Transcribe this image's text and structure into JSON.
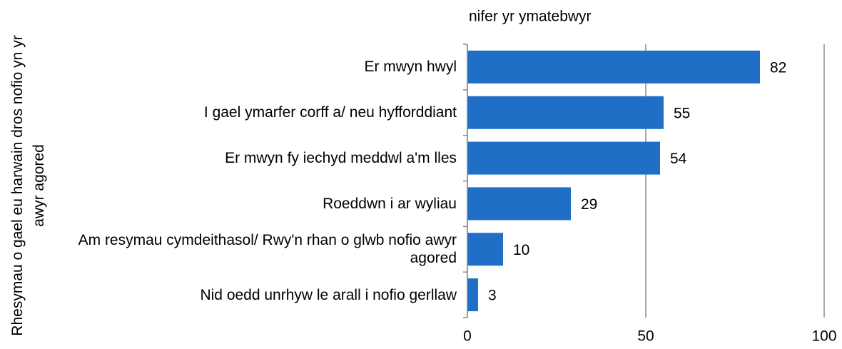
{
  "chart_data": {
    "type": "barh",
    "title": "nifer yr ymatebwyr",
    "y_label": "Rhesymau o gael eu harwain dros nofio yn yr awyr agored",
    "categories": [
      "Er mwyn hwyl",
      "I gael ymarfer corff a/ neu hyfforddiant",
      "Er mwyn fy iechyd meddwl a'm lles",
      "Roeddwn i ar wyliau",
      "Am resymau cymdeithasol/ Rwy'n rhan o glwb nofio awyr agored",
      "Nid oedd unrhyw le arall i nofio gerllaw"
    ],
    "values": [
      82,
      55,
      54,
      29,
      10,
      3
    ],
    "color": "#1f6fc6",
    "xlim": [
      0,
      100
    ],
    "xticks": [
      0,
      50,
      100
    ],
    "grid": true
  }
}
